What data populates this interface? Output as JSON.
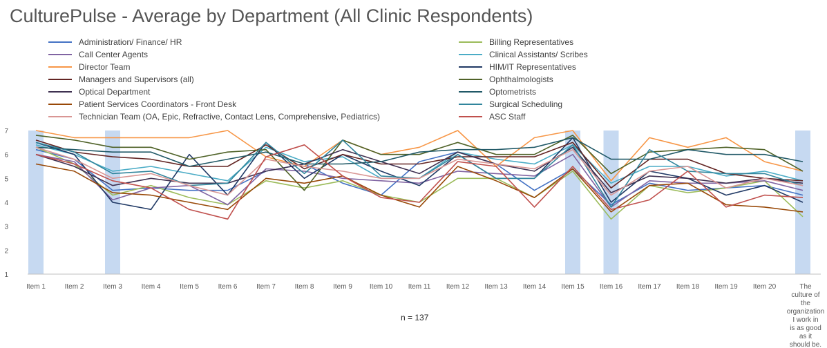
{
  "chart_data": {
    "type": "line",
    "title": "CulturePulse - Average by Department (All Clinic Respondents)",
    "xlabel": "",
    "ylabel": "",
    "ylim": [
      1,
      7
    ],
    "yticks": [
      1,
      2,
      3,
      4,
      5,
      6,
      7
    ],
    "grid": false,
    "legend_placement": "top",
    "note": "n = 137",
    "categories": [
      "Item 1",
      "Item 2",
      "Item 3",
      "Item 4",
      "Item 5",
      "Item 6",
      "Item 7",
      "Item 8",
      "Item 9",
      "Item 10",
      "Item 11",
      "Item 12",
      "Item 13",
      "Item 14",
      "Item 15",
      "Item 16",
      "Item 17",
      "Item 18",
      "Item 19",
      "Item 20",
      "The culture of the organization I work in is as good as it should be."
    ],
    "highlighted_items": [
      "Item 1",
      "Item 3",
      "Item 15",
      "Item 16",
      "The culture of the organization I work in is as good as it should be."
    ],
    "highlight_color": "#c6d9f1",
    "series": [
      {
        "name": "Administration/ Finance/ HR",
        "color": "#4472c4",
        "values": [
          6.2,
          5.8,
          4.5,
          4.6,
          4.5,
          4.5,
          5.3,
          5.6,
          4.8,
          4.3,
          5.7,
          6.1,
          5.6,
          4.5,
          5.4,
          3.9,
          4.8,
          4.5,
          4.6,
          4.7,
          4.3
        ]
      },
      {
        "name": "Billing Representatives",
        "color": "#9bbb59",
        "values": [
          6.3,
          5.6,
          4.3,
          4.7,
          4.2,
          3.9,
          4.9,
          4.6,
          4.9,
          4.3,
          4.0,
          5.0,
          5.0,
          4.2,
          5.3,
          3.3,
          4.7,
          4.4,
          4.6,
          4.9,
          3.4
        ]
      },
      {
        "name": "Call Center Agents",
        "color": "#8064a2",
        "values": [
          6.0,
          5.7,
          4.1,
          4.6,
          4.7,
          3.9,
          5.4,
          5.3,
          5.0,
          4.9,
          4.8,
          5.3,
          5.2,
          5.1,
          6.0,
          3.8,
          4.9,
          4.8,
          4.8,
          4.9,
          4.5
        ]
      },
      {
        "name": "Clinical Assistants/ Scribes",
        "color": "#4bacc6",
        "values": [
          6.4,
          6.0,
          5.3,
          5.5,
          5.2,
          4.9,
          6.3,
          5.7,
          5.9,
          5.0,
          5.0,
          6.1,
          5.8,
          5.6,
          6.4,
          4.8,
          5.5,
          5.5,
          5.1,
          5.3,
          4.9
        ]
      },
      {
        "name": "Director Team",
        "color": "#f79646",
        "values": [
          7.0,
          6.7,
          6.7,
          6.7,
          6.7,
          7.0,
          5.9,
          5.5,
          6.6,
          6.0,
          6.3,
          7.0,
          5.5,
          6.7,
          7.0,
          4.9,
          6.7,
          6.3,
          6.7,
          5.7,
          5.3
        ]
      },
      {
        "name": "HIM/IT Representatives",
        "color": "#1f3864",
        "values": [
          6.5,
          6.0,
          4.0,
          3.7,
          6.0,
          4.3,
          6.5,
          5.0,
          6.0,
          5.3,
          4.7,
          6.0,
          5.0,
          5.0,
          6.7,
          4.0,
          5.3,
          5.0,
          4.3,
          4.7,
          4.0
        ]
      },
      {
        "name": "Managers and Supervisors (all)",
        "color": "#632523",
        "values": [
          6.6,
          6.1,
          5.9,
          5.8,
          5.5,
          5.5,
          6.4,
          5.4,
          6.0,
          5.6,
          5.6,
          5.9,
          5.9,
          5.9,
          6.5,
          4.6,
          5.8,
          5.8,
          5.2,
          5.0,
          4.9
        ]
      },
      {
        "name": "Ophthalmologists",
        "color": "#4f6228",
        "values": [
          6.8,
          6.6,
          6.3,
          6.3,
          5.8,
          6.1,
          6.2,
          4.5,
          6.6,
          6.0,
          6.0,
          6.5,
          6.0,
          6.0,
          6.8,
          5.2,
          6.1,
          6.2,
          6.3,
          6.2,
          5.3
        ]
      },
      {
        "name": "Optical Department",
        "color": "#3f3151",
        "values": [
          6.0,
          5.5,
          4.7,
          5.0,
          4.8,
          4.8,
          5.3,
          5.6,
          6.2,
          5.7,
          5.2,
          6.1,
          5.6,
          5.3,
          6.3,
          4.4,
          5.1,
          5.0,
          4.8,
          5.0,
          4.8
        ]
      },
      {
        "name": "Optometrists",
        "color": "#215967",
        "values": [
          6.3,
          6.2,
          6.1,
          6.1,
          5.5,
          5.8,
          6.1,
          5.6,
          5.6,
          5.7,
          6.1,
          6.2,
          6.2,
          6.3,
          6.7,
          5.8,
          5.8,
          6.2,
          6.0,
          6.0,
          5.7
        ]
      },
      {
        "name": "Patient Services Coordinators - Front Desk",
        "color": "#984807",
        "values": [
          5.6,
          5.3,
          4.4,
          4.3,
          4.0,
          3.7,
          5.0,
          4.8,
          5.1,
          4.3,
          3.8,
          5.5,
          4.9,
          4.2,
          5.4,
          3.6,
          4.7,
          4.8,
          3.9,
          3.8,
          3.6
        ]
      },
      {
        "name": "Surgical Scheduling",
        "color": "#31859c",
        "values": [
          6.5,
          6.1,
          5.2,
          5.3,
          4.7,
          4.8,
          6.5,
          5.2,
          6.6,
          5.1,
          5.0,
          6.0,
          5.0,
          5.0,
          6.4,
          3.8,
          6.2,
          5.3,
          5.2,
          5.2,
          4.7
        ]
      },
      {
        "name": "Technician Team (OA, Epic, Refractive, Contact Lens, Comprehensive, Pediatrics)",
        "color": "#d99694",
        "values": [
          6.3,
          5.8,
          5.0,
          5.2,
          4.7,
          4.3,
          5.8,
          5.5,
          5.3,
          5.0,
          5.0,
          5.8,
          5.6,
          5.4,
          6.2,
          4.3,
          5.3,
          5.5,
          4.6,
          5.0,
          4.7
        ]
      },
      {
        "name": "ASC Staff",
        "color": "#c0504d",
        "values": [
          6.0,
          5.6,
          4.9,
          4.6,
          3.7,
          3.3,
          5.9,
          6.4,
          5.1,
          4.2,
          4.0,
          5.7,
          5.5,
          3.8,
          5.5,
          3.7,
          4.1,
          5.3,
          3.8,
          4.3,
          4.2
        ]
      }
    ]
  }
}
